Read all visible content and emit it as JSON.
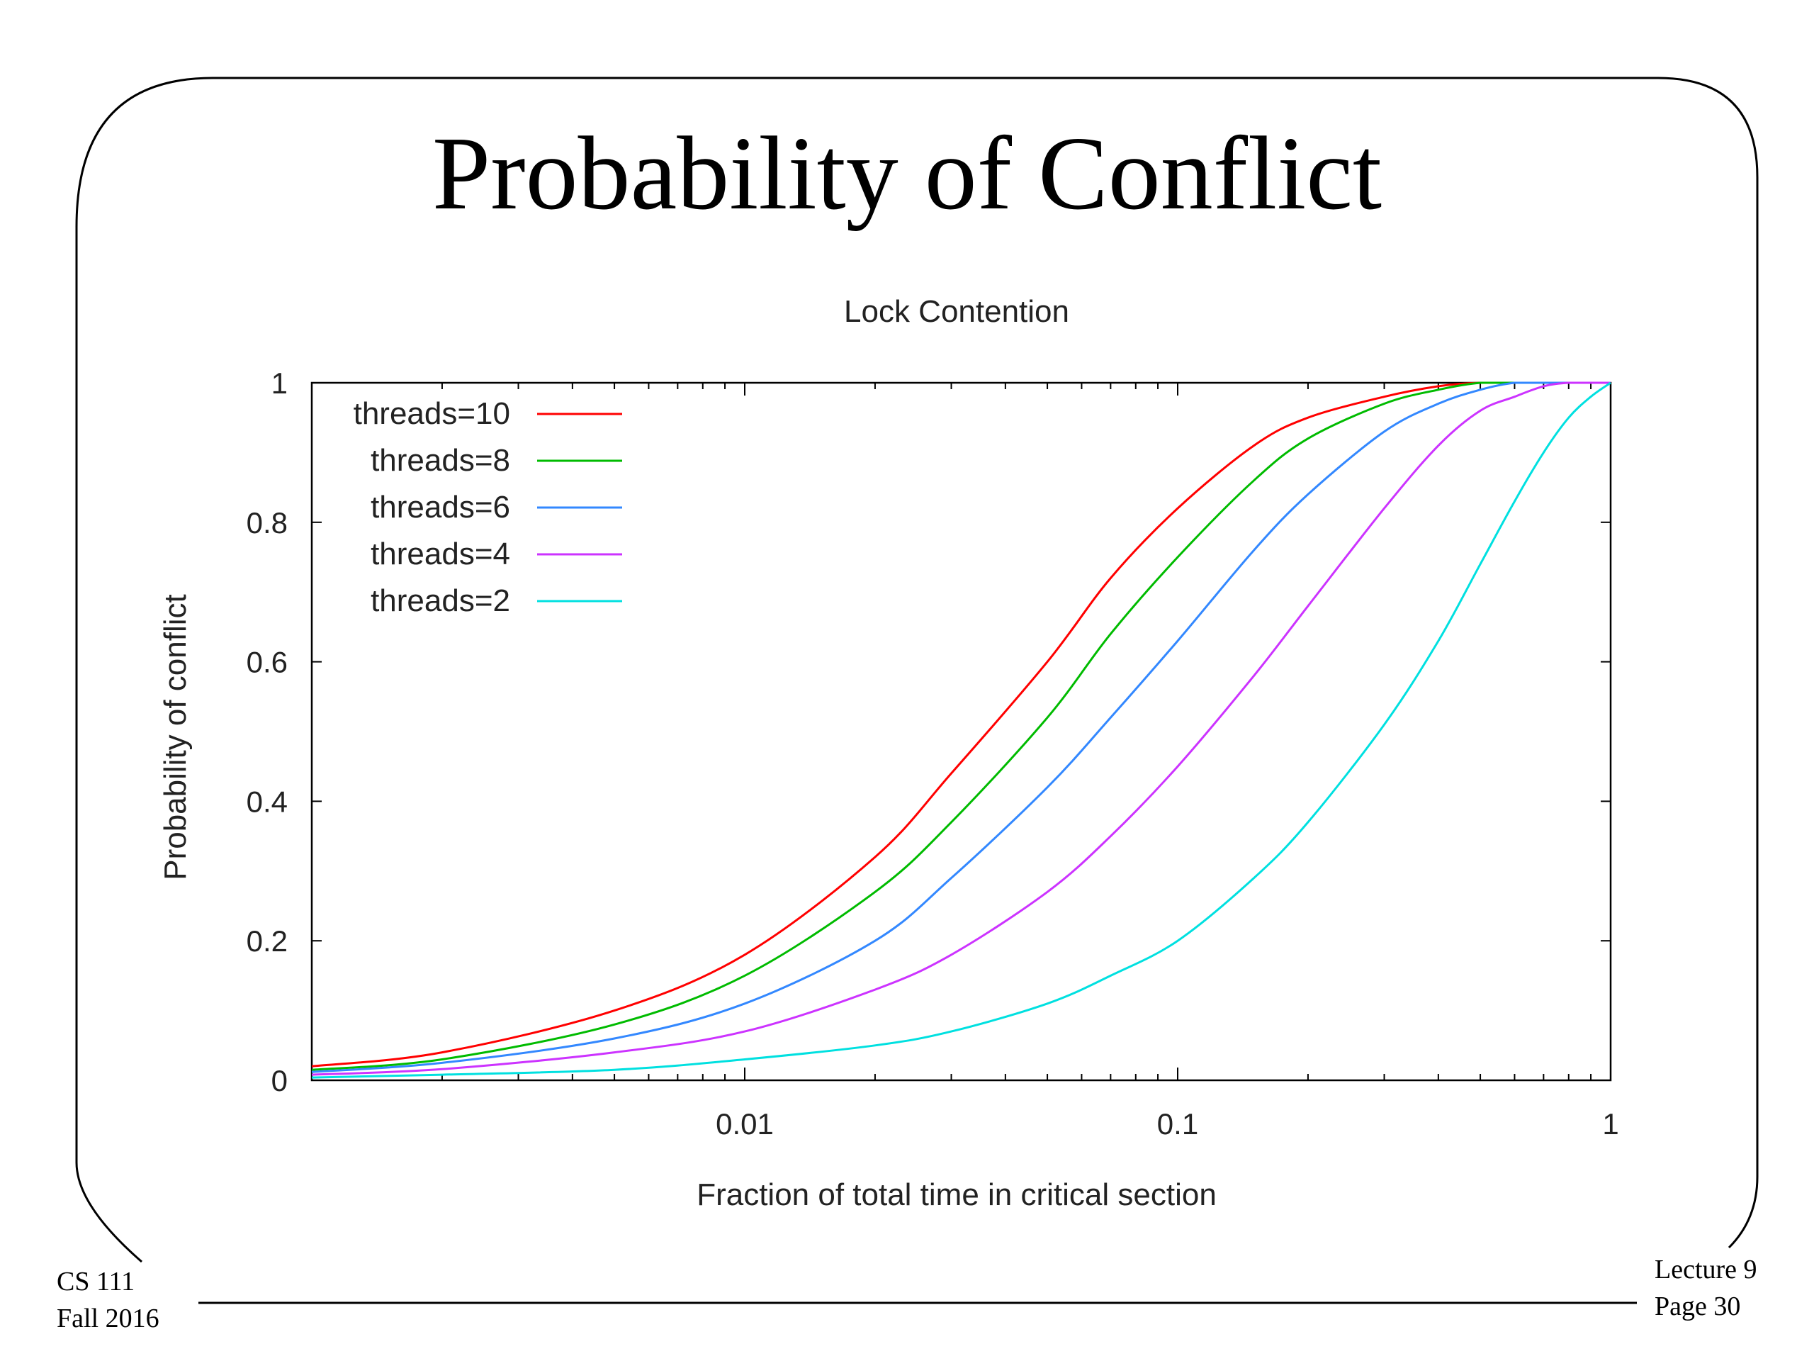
{
  "slide": {
    "title": "Probability of Conflict",
    "footer_left": [
      "CS 111",
      "Fall 2016"
    ],
    "footer_right": [
      "Lecture 9",
      "Page 30"
    ]
  },
  "chart_data": {
    "type": "line",
    "title": "Lock Contention",
    "xlabel": "Fraction of total time in critical section",
    "ylabel": "Probability of conflict",
    "xscale": "log",
    "xlim": [
      0.001,
      1
    ],
    "ylim": [
      0,
      1
    ],
    "x_ticks": [
      0.01,
      0.1,
      1
    ],
    "x_tick_labels": [
      "0.01",
      "0.1",
      "1"
    ],
    "y_ticks": [
      0,
      0.2,
      0.4,
      0.6,
      0.8,
      1
    ],
    "y_tick_labels": [
      "0",
      "0.2",
      "0.4",
      "0.6",
      "0.8",
      "1"
    ],
    "grid": false,
    "legend": "top-left",
    "x": [
      0.001,
      0.002,
      0.005,
      0.01,
      0.02,
      0.03,
      0.05,
      0.07,
      0.1,
      0.15,
      0.2,
      0.3,
      0.4,
      0.5,
      0.6,
      0.7,
      0.8,
      0.9,
      1
    ],
    "series": [
      {
        "name": "threads=10",
        "color": "#ff0000",
        "values": [
          0.02,
          0.04,
          0.1,
          0.18,
          0.32,
          0.44,
          0.6,
          0.72,
          0.82,
          0.91,
          0.95,
          0.98,
          0.995,
          1.0,
          1.0,
          1.0,
          1.0,
          1.0,
          1.0
        ]
      },
      {
        "name": "threads=8",
        "color": "#00bb00",
        "values": [
          0.015,
          0.03,
          0.08,
          0.15,
          0.27,
          0.37,
          0.52,
          0.64,
          0.75,
          0.86,
          0.92,
          0.97,
          0.99,
          1.0,
          1.0,
          1.0,
          1.0,
          1.0,
          1.0
        ]
      },
      {
        "name": "threads=6",
        "color": "#3388ff",
        "values": [
          0.012,
          0.025,
          0.06,
          0.11,
          0.2,
          0.29,
          0.42,
          0.52,
          0.63,
          0.76,
          0.84,
          0.93,
          0.97,
          0.99,
          1.0,
          1.0,
          1.0,
          1.0,
          1.0
        ]
      },
      {
        "name": "threads=4",
        "color": "#cc33ff",
        "values": [
          0.008,
          0.016,
          0.04,
          0.07,
          0.13,
          0.18,
          0.27,
          0.35,
          0.45,
          0.58,
          0.68,
          0.82,
          0.91,
          0.96,
          0.98,
          0.995,
          1.0,
          1.0,
          1.0
        ]
      },
      {
        "name": "threads=2",
        "color": "#00e0e0",
        "values": [
          0.004,
          0.008,
          0.015,
          0.03,
          0.05,
          0.07,
          0.11,
          0.15,
          0.2,
          0.29,
          0.37,
          0.51,
          0.63,
          0.74,
          0.83,
          0.9,
          0.95,
          0.98,
          1.0
        ]
      }
    ]
  }
}
